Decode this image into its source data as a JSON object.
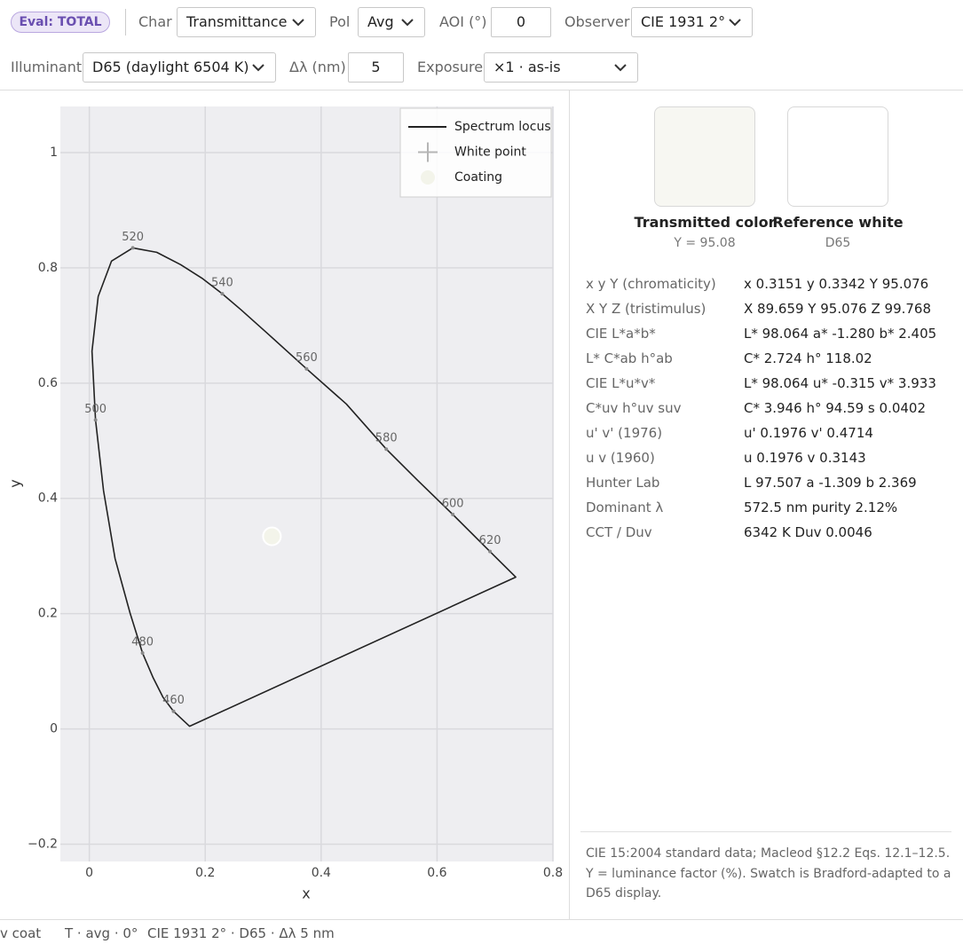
{
  "toolbar": {
    "badge": "Eval: TOTAL",
    "fields": [
      {
        "label": "Char",
        "value": "Transmittance"
      },
      {
        "label": "Pol",
        "value": "Avg"
      },
      {
        "label": "AOI (°)",
        "value": 0
      },
      {
        "label": "Observer",
        "value": "CIE 1931 2°"
      },
      {
        "label": "Illuminant",
        "value": "D65 (daylight 6504 K)"
      },
      {
        "label": "Δλ (nm)",
        "value": 5
      },
      {
        "label": "Exposure",
        "value": "×1 · as-is"
      }
    ]
  },
  "chart_data": {
    "type": "line",
    "xlabel": "x",
    "ylabel": "y",
    "xlim": [
      -0.05,
      0.8
    ],
    "ylim": [
      -0.23,
      1.08
    ],
    "xticks": [
      0,
      0.2,
      0.4,
      0.6,
      0.8
    ],
    "yticks": [
      {
        "value": -0.2,
        "label": "−0.2"
      },
      0,
      0.2,
      0.4,
      0.6,
      0.8,
      1
    ],
    "grid": true,
    "legend": "upper right",
    "series": [
      {
        "name": "Spectrum locus",
        "color": "#222222",
        "closed": true,
        "x": [
          0.1729,
          0.1453,
          0.127,
          0.1101,
          0.0918,
          0.0704,
          0.0444,
          0.0245,
          0.0107,
          0.0046,
          0.0153,
          0.0382,
          0.075,
          0.1163,
          0.1576,
          0.1958,
          0.2294,
          0.2616,
          0.3059,
          0.3748,
          0.4436,
          0.5124,
          0.566,
          0.6272,
          0.6914,
          0.7358
        ],
        "y": [
          0.0046,
          0.0306,
          0.0551,
          0.0888,
          0.1317,
          0.2006,
          0.2956,
          0.4135,
          0.536,
          0.6554,
          0.7504,
          0.8116,
          0.8346,
          0.827,
          0.8055,
          0.781,
          0.755,
          0.7274,
          0.6876,
          0.6248,
          0.5636,
          0.4855,
          0.4319,
          0.3721,
          0.3078,
          0.2634
        ]
      },
      {
        "name": "White point",
        "color": "#b5b5b5",
        "marker": "plus",
        "x": [
          0.3127
        ],
        "y": [
          0.329
        ]
      },
      {
        "name": "Coating",
        "color": "#f3f4ea",
        "marker": "circle",
        "x": [
          0.3151
        ],
        "y": [
          0.3342
        ]
      }
    ],
    "wavelengths": {
      "labels": [
        460,
        480,
        500,
        520,
        540,
        560,
        580,
        600,
        620
      ],
      "x": [
        0.1453,
        0.0918,
        0.0107,
        0.075,
        0.2294,
        0.3748,
        0.5124,
        0.6272,
        0.6914
      ],
      "y": [
        0.0306,
        0.1317,
        0.536,
        0.8346,
        0.755,
        0.6248,
        0.4855,
        0.3721,
        0.3078
      ]
    }
  },
  "panel": {
    "swatches": [
      {
        "label": "Transmitted color",
        "sub": "Y = 95.08",
        "color": "#f7f7f2"
      },
      {
        "label": "Reference white",
        "sub": "D65",
        "color": "#ffffff"
      }
    ],
    "rows": [
      [
        "x y Y (chromaticity)",
        "x 0.3151 y 0.3342 Y 95.076"
      ],
      [
        "X Y Z (tristimulus)",
        "X 89.659 Y 95.076 Z 99.768"
      ],
      [
        "CIE L*a*b*",
        "L* 98.064 a* -1.280 b* 2.405"
      ],
      [
        "L* C*ab h°ab",
        "C* 2.724 h° 118.02"
      ],
      [
        "CIE L*u*v*",
        "L* 98.064 u* -0.315 v* 3.933"
      ],
      [
        "C*uv h°uv suv",
        "C* 3.946 h° 94.59 s 0.0402"
      ],
      [
        "u' v' (1976)",
        "u' 0.1976 v' 0.4714"
      ],
      [
        "u v (1960)",
        "u 0.1976 v 0.3143"
      ],
      [
        "Hunter Lab",
        "L 97.507 a -1.309 b 2.369"
      ],
      [
        "Dominant λ",
        "572.5 nm purity 2.12%"
      ],
      [
        "CCT / Duv",
        "6342 K Duv 0.0046"
      ]
    ],
    "note": "CIE 15:2004 standard data; Macleod §12.2 Eqs. 12.1–12.5. Y = luminance factor (%). Swatch is Bradford-adapted to a D65 display."
  },
  "footer": [
    "v coat",
    "T · avg · 0°",
    "CIE 1931 2° · D65 · Δλ 5 nm"
  ]
}
